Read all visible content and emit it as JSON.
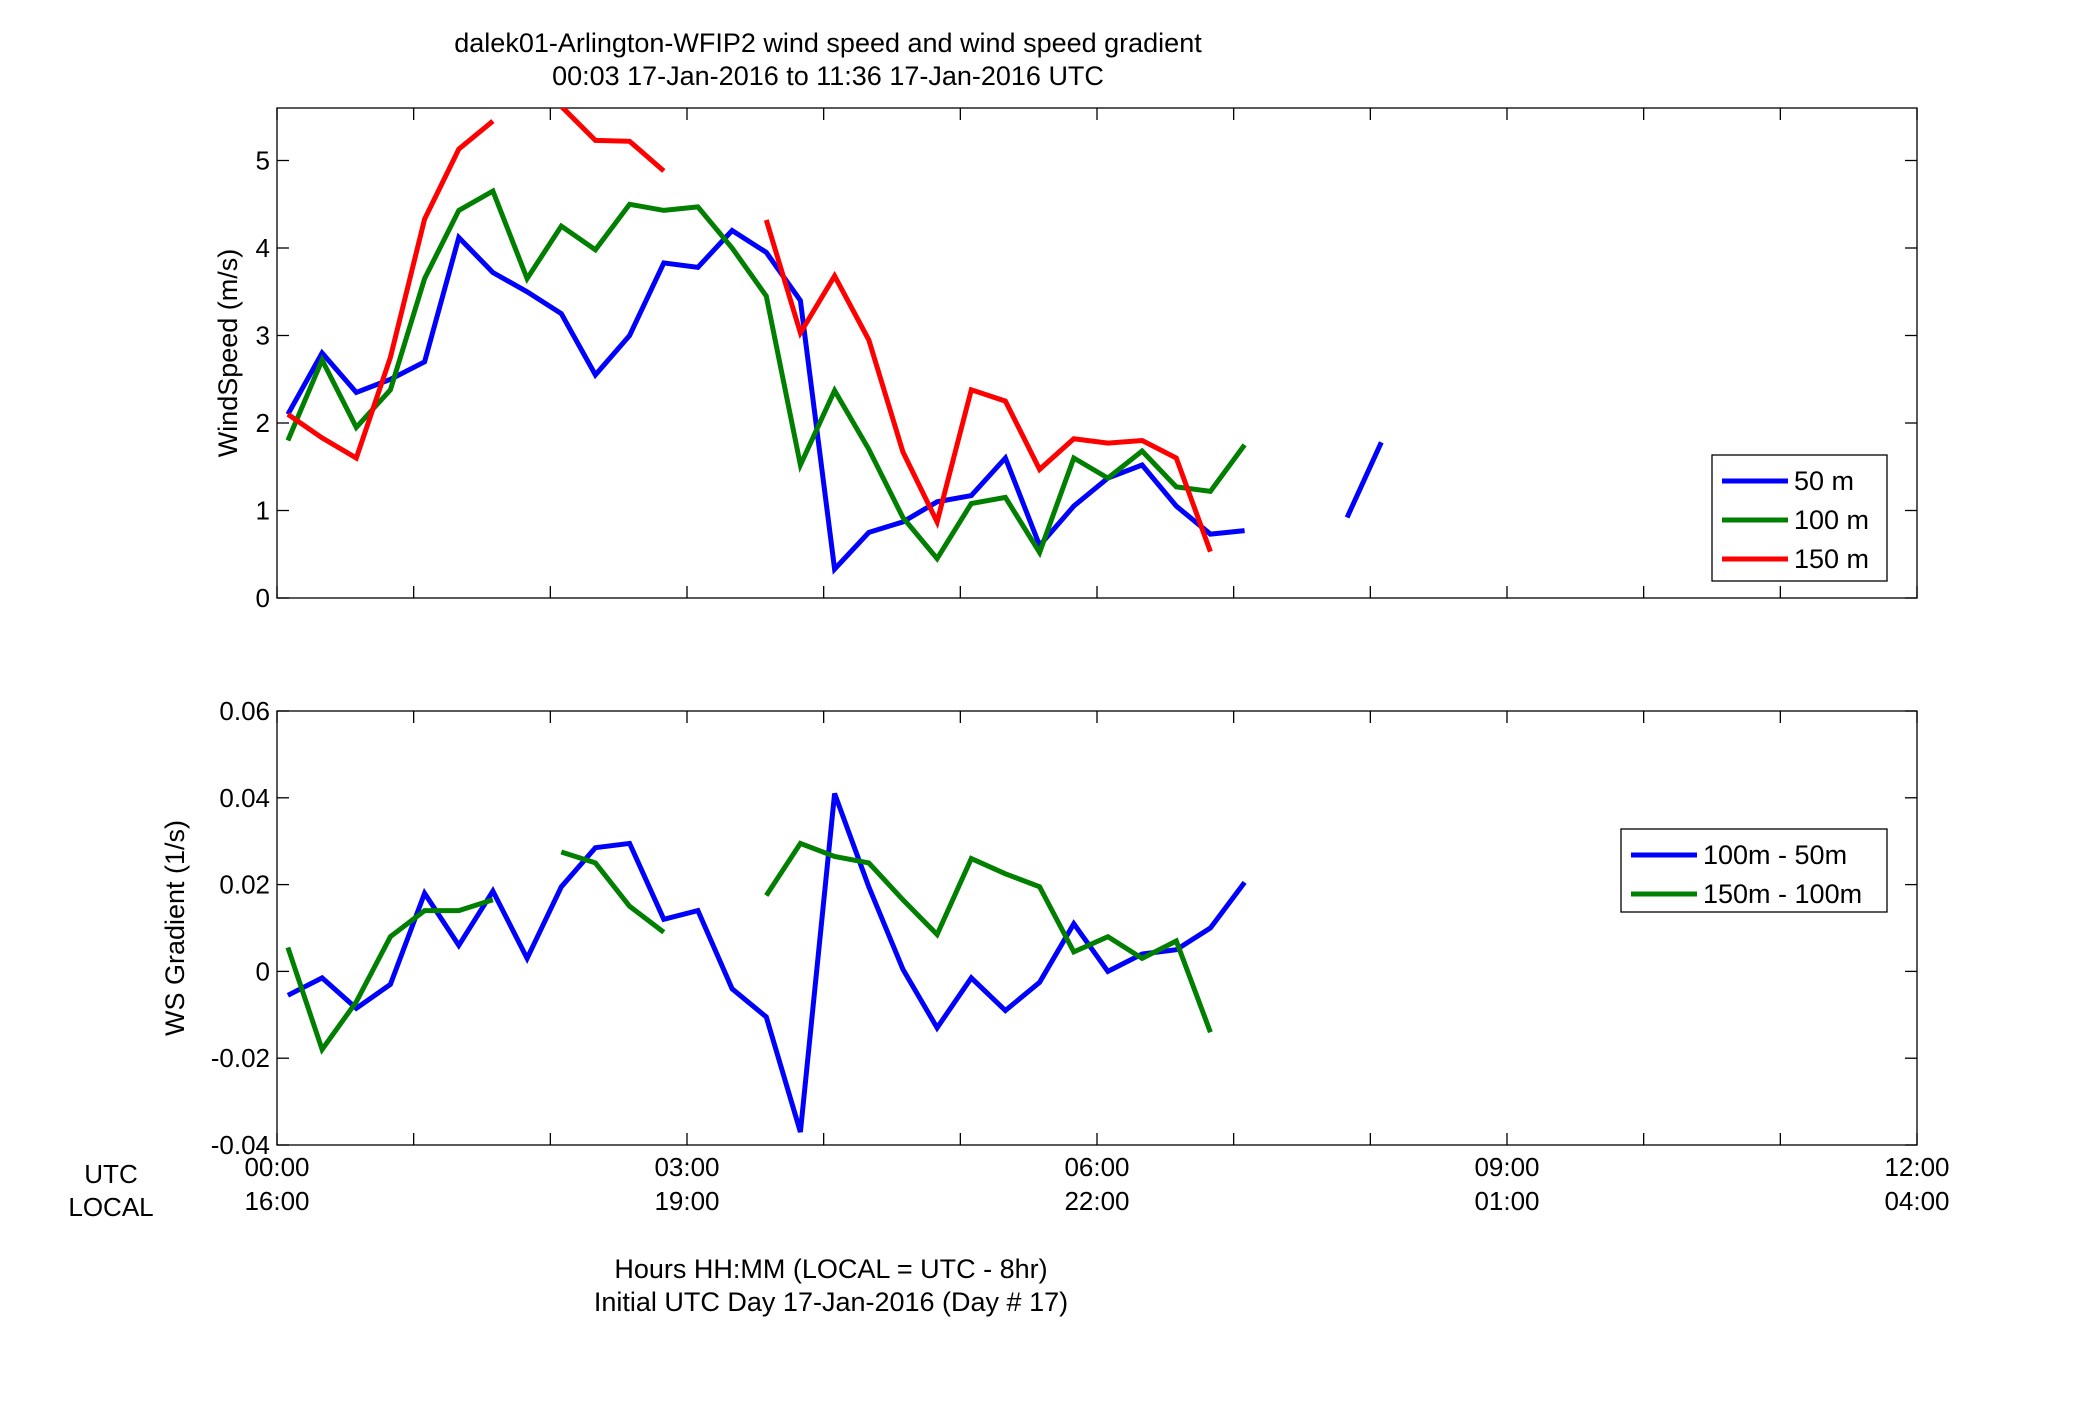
{
  "title_line1": "dalek01-Arlington-WFIP2  wind speed and wind speed gradient",
  "title_line2": "00:03 17-Jan-2016 to 11:36 17-Jan-2016  UTC",
  "xaxis": {
    "row_labels": [
      "UTC",
      "LOCAL"
    ],
    "ticks_hours": [
      0,
      3,
      6,
      9,
      12
    ],
    "utc_labels": [
      "00:00",
      "03:00",
      "06:00",
      "09:00",
      "12:00"
    ],
    "local_labels": [
      "16:00",
      "19:00",
      "22:00",
      "01:00",
      "04:00"
    ],
    "xlim": [
      0,
      12
    ],
    "label_line1": "Hours HH:MM  (LOCAL = UTC - 8hr)",
    "label_line2": "Initial UTC Day 17-Jan-2016 (Day # 17)"
  },
  "chart_data": [
    {
      "type": "line",
      "ylabel": "WindSpeed (m/s)",
      "ylim": [
        0,
        5.6
      ],
      "yticks": [
        0,
        1,
        2,
        3,
        4,
        5
      ],
      "ytick_labels": [
        "0",
        "1",
        "2",
        "3",
        "4",
        "5"
      ],
      "legend_position": "right",
      "series": [
        {
          "name": "50 m",
          "color": "#0000ff",
          "x": [
            0.08,
            0.33,
            0.58,
            0.83,
            1.08,
            1.33,
            1.58,
            1.83,
            2.08,
            2.33,
            2.58,
            2.83,
            3.08,
            3.33,
            3.58,
            3.83,
            4.08,
            4.33,
            4.58,
            4.83,
            5.08,
            5.33,
            5.58,
            5.83,
            6.08,
            6.33,
            6.58,
            6.83,
            7.08,
            null,
            7.83,
            8.08
          ],
          "y": [
            2.1,
            2.8,
            2.35,
            2.5,
            2.7,
            4.12,
            3.72,
            3.5,
            3.25,
            2.55,
            3.0,
            3.83,
            3.78,
            4.2,
            3.95,
            3.4,
            0.33,
            0.75,
            0.87,
            1.1,
            1.17,
            1.6,
            0.6,
            1.05,
            1.37,
            1.52,
            1.05,
            0.73,
            0.77,
            null,
            0.92,
            1.78
          ]
        },
        {
          "name": "100 m",
          "color": "#007f00",
          "x": [
            0.08,
            0.33,
            0.58,
            0.83,
            1.08,
            1.33,
            1.58,
            1.83,
            2.08,
            2.33,
            2.58,
            2.83,
            3.08,
            3.33,
            3.58,
            3.83,
            4.08,
            4.33,
            4.58,
            4.83,
            5.08,
            5.33,
            5.58,
            5.83,
            6.08,
            6.33,
            6.58,
            6.83,
            7.08
          ],
          "y": [
            1.8,
            2.72,
            1.95,
            2.38,
            3.65,
            4.43,
            4.65,
            3.65,
            4.25,
            3.98,
            4.5,
            4.43,
            4.47,
            4.0,
            3.45,
            1.52,
            2.37,
            1.7,
            0.92,
            0.45,
            1.08,
            1.15,
            0.52,
            1.6,
            1.37,
            1.68,
            1.27,
            1.22,
            1.75
          ]
        },
        {
          "name": "150 m",
          "color": "#ff0000",
          "x": [
            0.08,
            0.33,
            0.58,
            0.83,
            1.08,
            1.33,
            1.58,
            null,
            2.08,
            2.33,
            2.58,
            2.83,
            null,
            3.58,
            3.83,
            4.08,
            4.33,
            4.58,
            4.83,
            5.08,
            5.33,
            5.58,
            5.83,
            6.08,
            6.33,
            6.58,
            6.83
          ],
          "y": [
            2.1,
            1.83,
            1.6,
            2.75,
            4.33,
            5.13,
            5.45,
            null,
            5.62,
            5.23,
            5.22,
            4.88,
            null,
            4.32,
            3.03,
            3.68,
            2.95,
            1.67,
            0.87,
            2.38,
            2.25,
            1.47,
            1.82,
            1.77,
            1.8,
            1.6,
            0.53
          ]
        }
      ]
    },
    {
      "type": "line",
      "ylabel": "WS Gradient (1/s)",
      "ylim": [
        -0.04,
        0.06
      ],
      "yticks": [
        -0.04,
        -0.02,
        0,
        0.02,
        0.04,
        0.06
      ],
      "ytick_labels": [
        "-0.04",
        "-0.02",
        "0",
        "0.02",
        "0.04",
        "0.06"
      ],
      "legend_position": "right",
      "series": [
        {
          "name": "100m - 50m",
          "color": "#0000ff",
          "x": [
            0.08,
            0.33,
            0.58,
            0.83,
            1.08,
            1.33,
            1.58,
            1.83,
            2.08,
            2.33,
            2.58,
            2.83,
            3.08,
            3.33,
            3.58,
            3.83,
            4.08,
            4.33,
            4.58,
            4.83,
            5.08,
            5.33,
            5.58,
            5.83,
            6.08,
            6.33,
            6.58,
            6.83,
            7.08
          ],
          "y": [
            -0.0055,
            -0.0015,
            -0.0085,
            -0.003,
            0.018,
            0.006,
            0.0185,
            0.003,
            0.0195,
            0.0285,
            0.0295,
            0.012,
            0.014,
            -0.004,
            -0.0105,
            -0.037,
            0.041,
            0.0195,
            0.0005,
            -0.013,
            -0.0015,
            -0.009,
            -0.0025,
            0.011,
            0.0,
            0.004,
            0.005,
            0.01,
            0.0205
          ]
        },
        {
          "name": "150m - 100m",
          "color": "#007f00",
          "x": [
            0.08,
            0.33,
            0.58,
            0.83,
            1.08,
            1.33,
            1.58,
            null,
            2.08,
            2.33,
            2.58,
            2.83,
            null,
            3.58,
            3.83,
            4.08,
            4.33,
            4.58,
            4.83,
            5.08,
            5.33,
            5.58,
            5.83,
            6.08,
            6.33,
            6.58,
            6.83
          ],
          "y": [
            0.0055,
            -0.018,
            -0.007,
            0.008,
            0.014,
            0.014,
            0.0165,
            null,
            0.0275,
            0.025,
            0.015,
            0.009,
            null,
            0.0175,
            0.0295,
            0.0265,
            0.025,
            0.0165,
            0.0085,
            0.026,
            0.0225,
            0.0195,
            0.0045,
            0.008,
            0.003,
            0.007,
            -0.014
          ]
        }
      ]
    }
  ]
}
